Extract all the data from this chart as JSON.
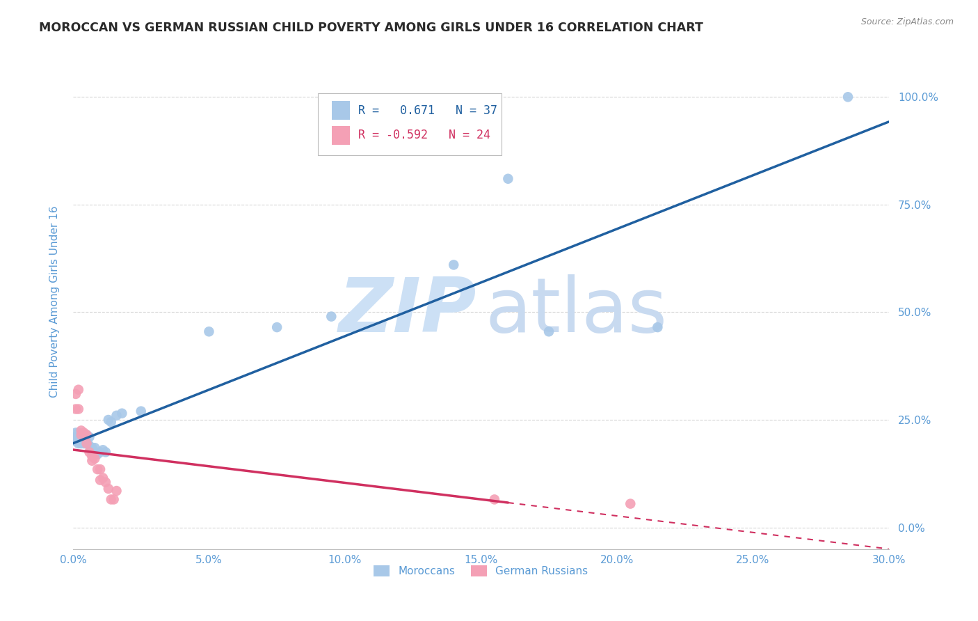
{
  "title": "MOROCCAN VS GERMAN RUSSIAN CHILD POVERTY AMONG GIRLS UNDER 16 CORRELATION CHART",
  "source": "Source: ZipAtlas.com",
  "xlabel_ticks": [
    "0.0%",
    "5.0%",
    "10.0%",
    "15.0%",
    "20.0%",
    "25.0%",
    "30.0%"
  ],
  "ylabel_ticks": [
    "0.0%",
    "25.0%",
    "50.0%",
    "75.0%",
    "100.0%"
  ],
  "ylabel_label": "Child Poverty Among Girls Under 16",
  "xlim": [
    0.0,
    0.3
  ],
  "ylim": [
    -0.05,
    1.1
  ],
  "moroccan_R": 0.671,
  "moroccan_N": 37,
  "german_russian_R": -0.592,
  "german_russian_N": 24,
  "moroccan_color": "#a8c8e8",
  "german_russian_color": "#f4a0b5",
  "moroccan_line_color": "#2060a0",
  "german_russian_line_color": "#d03060",
  "watermark_zip_color": "#cce0f5",
  "watermark_atlas_color": "#c8daf0",
  "background_color": "#ffffff",
  "grid_color": "#cccccc",
  "moroccan_x": [
    0.001,
    0.001,
    0.001,
    0.002,
    0.002,
    0.002,
    0.003,
    0.003,
    0.003,
    0.004,
    0.004,
    0.005,
    0.005,
    0.005,
    0.006,
    0.006,
    0.007,
    0.007,
    0.008,
    0.008,
    0.009,
    0.01,
    0.011,
    0.012,
    0.013,
    0.014,
    0.016,
    0.018,
    0.025,
    0.05,
    0.075,
    0.095,
    0.14,
    0.16,
    0.175,
    0.215,
    0.285
  ],
  "moroccan_y": [
    0.2,
    0.21,
    0.22,
    0.195,
    0.205,
    0.22,
    0.195,
    0.21,
    0.2,
    0.195,
    0.21,
    0.2,
    0.195,
    0.215,
    0.19,
    0.21,
    0.175,
    0.185,
    0.175,
    0.185,
    0.17,
    0.175,
    0.18,
    0.175,
    0.25,
    0.245,
    0.26,
    0.265,
    0.27,
    0.455,
    0.465,
    0.49,
    0.61,
    0.81,
    0.455,
    0.465,
    1.0
  ],
  "german_russian_x": [
    0.001,
    0.001,
    0.002,
    0.002,
    0.003,
    0.003,
    0.004,
    0.005,
    0.005,
    0.006,
    0.007,
    0.007,
    0.008,
    0.009,
    0.01,
    0.01,
    0.011,
    0.012,
    0.013,
    0.014,
    0.015,
    0.016,
    0.155,
    0.205
  ],
  "german_russian_y": [
    0.275,
    0.31,
    0.275,
    0.32,
    0.225,
    0.215,
    0.22,
    0.215,
    0.195,
    0.175,
    0.165,
    0.155,
    0.16,
    0.135,
    0.135,
    0.11,
    0.115,
    0.105,
    0.09,
    0.065,
    0.065,
    0.085,
    0.065,
    0.055
  ],
  "legend_moroccan_label": "Moroccans",
  "legend_german_russian_label": "German Russians",
  "title_color": "#2a2a2a",
  "axis_label_color": "#5b9bd5",
  "tick_label_color": "#5b9bd5",
  "legend_text_blue": "#2060a0",
  "legend_text_pink": "#d03060"
}
